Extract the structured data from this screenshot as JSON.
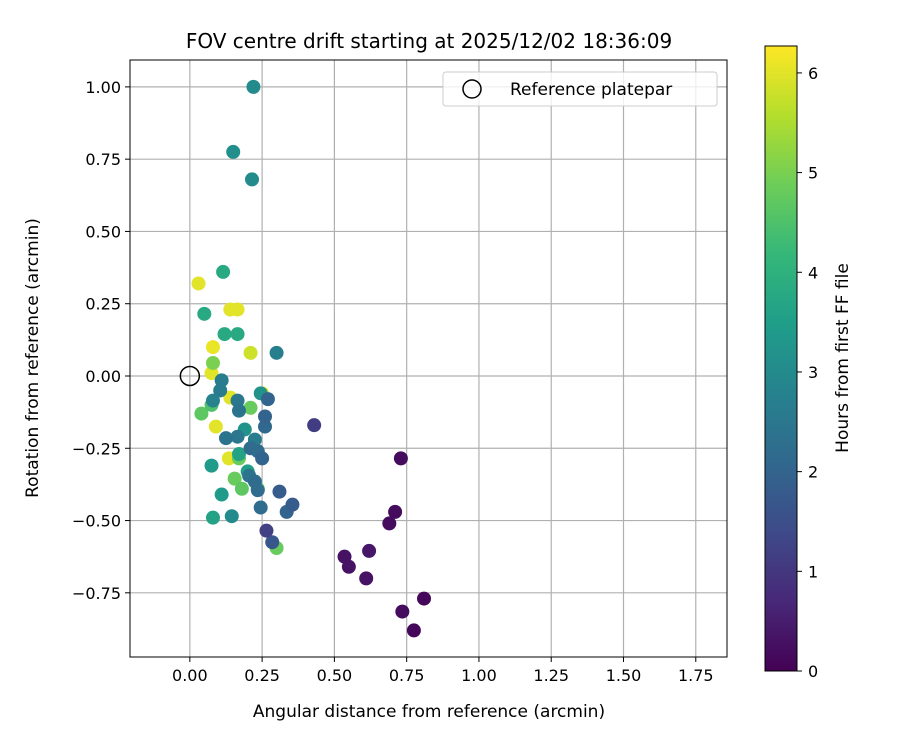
{
  "chart_data": {
    "type": "scatter",
    "title": "FOV centre drift starting at 2025/12/02 18:36:09",
    "xlabel": "Angular distance from reference (arcmin)",
    "ylabel": "Rotation from reference (arcmin)",
    "xlim": [
      -0.207,
      1.858
    ],
    "ylim": [
      -0.972,
      1.093
    ],
    "xticks": [
      0.0,
      0.25,
      0.5,
      0.75,
      1.0,
      1.25,
      1.5,
      1.75
    ],
    "xtick_labels": [
      "0.00",
      "0.25",
      "0.50",
      "0.75",
      "1.00",
      "1.25",
      "1.50",
      "1.75"
    ],
    "yticks": [
      1.0,
      0.75,
      0.5,
      0.25,
      0.0,
      -0.25,
      -0.5,
      -0.75
    ],
    "ytick_labels": [
      "1.00",
      "0.75",
      "0.50",
      "0.25",
      "0.00",
      "−0.25",
      "−0.50",
      "−0.75"
    ],
    "grid": true,
    "legend": {
      "placement": "top-right",
      "entries": [
        "Reference platepar"
      ]
    },
    "reference_point": [
      0,
      0
    ],
    "colorbar": {
      "label": "Hours from first FF file",
      "range": [
        0,
        6.27
      ],
      "ticks": [
        0,
        1,
        2,
        3,
        4,
        5,
        6
      ],
      "tick_labels": [
        "0",
        "1",
        "2",
        "3",
        "4",
        "5",
        "6"
      ],
      "colormap": "viridis"
    },
    "points": [
      [
        0.22,
        1.0,
        3.0
      ],
      [
        0.15,
        0.775,
        3.1
      ],
      [
        0.215,
        0.68,
        3.0
      ],
      [
        0.115,
        0.36,
        3.8
      ],
      [
        0.03,
        0.32,
        6.0
      ],
      [
        0.05,
        0.215,
        3.8
      ],
      [
        0.14,
        0.23,
        6.0
      ],
      [
        0.165,
        0.23,
        6.0
      ],
      [
        0.12,
        0.145,
        3.8
      ],
      [
        0.165,
        0.145,
        3.8
      ],
      [
        0.08,
        0.1,
        6.1
      ],
      [
        0.21,
        0.08,
        5.8
      ],
      [
        0.3,
        0.08,
        2.7
      ],
      [
        0.08,
        0.045,
        5.0
      ],
      [
        0.075,
        0.01,
        6.0
      ],
      [
        0.11,
        -0.015,
        2.6
      ],
      [
        0.105,
        -0.05,
        2.6
      ],
      [
        0.08,
        -0.085,
        2.8
      ],
      [
        0.075,
        -0.1,
        4.5
      ],
      [
        0.04,
        -0.13,
        4.7
      ],
      [
        0.14,
        -0.075,
        6.0
      ],
      [
        0.165,
        -0.085,
        2.5
      ],
      [
        0.17,
        -0.12,
        2.4
      ],
      [
        0.21,
        -0.11,
        4.8
      ],
      [
        0.245,
        -0.06,
        3.2
      ],
      [
        0.25,
        -0.06,
        6.0
      ],
      [
        0.27,
        -0.08,
        2.0
      ],
      [
        0.26,
        -0.14,
        2.0
      ],
      [
        0.26,
        -0.175,
        2.1
      ],
      [
        0.43,
        -0.17,
        1.1
      ],
      [
        0.09,
        -0.175,
        6.0
      ],
      [
        0.19,
        -0.185,
        3.2
      ],
      [
        0.165,
        -0.21,
        2.5
      ],
      [
        0.125,
        -0.215,
        2.4
      ],
      [
        0.225,
        -0.22,
        2.6
      ],
      [
        0.21,
        -0.25,
        2.2
      ],
      [
        0.235,
        -0.26,
        2.2
      ],
      [
        0.25,
        -0.285,
        2.0
      ],
      [
        0.17,
        -0.27,
        3.6
      ],
      [
        0.135,
        -0.285,
        6.0
      ],
      [
        0.17,
        -0.285,
        4.8
      ],
      [
        0.075,
        -0.31,
        3.4
      ],
      [
        0.2,
        -0.33,
        3.5
      ],
      [
        0.155,
        -0.355,
        4.8
      ],
      [
        0.205,
        -0.345,
        2.4
      ],
      [
        0.225,
        -0.365,
        2.2
      ],
      [
        0.235,
        -0.395,
        2.2
      ],
      [
        0.18,
        -0.39,
        4.7
      ],
      [
        0.235,
        -0.39,
        4.8
      ],
      [
        0.11,
        -0.41,
        3.4
      ],
      [
        0.31,
        -0.4,
        1.8
      ],
      [
        0.355,
        -0.445,
        1.8
      ],
      [
        0.335,
        -0.47,
        2.0
      ],
      [
        0.245,
        -0.455,
        2.2
      ],
      [
        0.08,
        -0.49,
        3.6
      ],
      [
        0.145,
        -0.485,
        3.0
      ],
      [
        0.265,
        -0.535,
        1.2
      ],
      [
        0.285,
        -0.575,
        1.7
      ],
      [
        0.3,
        -0.595,
        4.8
      ],
      [
        0.73,
        -0.285,
        0.2
      ],
      [
        0.71,
        -0.47,
        0.2
      ],
      [
        0.69,
        -0.51,
        0.2
      ],
      [
        0.535,
        -0.625,
        0.3
      ],
      [
        0.55,
        -0.66,
        0.3
      ],
      [
        0.62,
        -0.605,
        0.4
      ],
      [
        0.61,
        -0.7,
        0.3
      ],
      [
        0.735,
        -0.815,
        0.2
      ],
      [
        0.81,
        -0.77,
        0.1
      ],
      [
        0.775,
        -0.88,
        0.1
      ]
    ]
  }
}
